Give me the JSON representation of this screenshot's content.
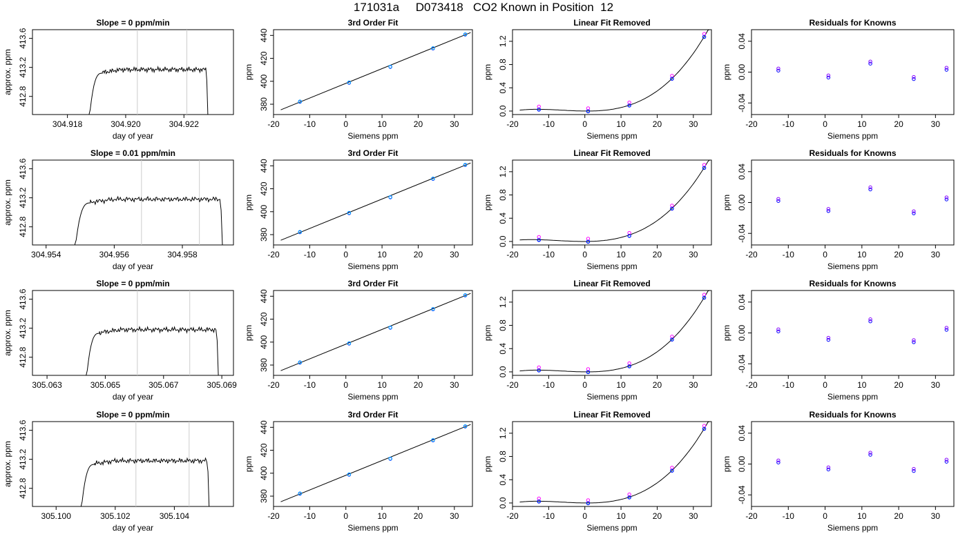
{
  "title": "171031a     D073418   CO2 Known in Position  12",
  "panel_titles": {
    "fit": "3rd Order Fit",
    "linear_removed": "Linear Fit Removed",
    "residuals": "Residuals for Knowns"
  },
  "axis_labels": {
    "day_of_year": "day of year",
    "approx_ppm": "approx. ppm",
    "siemens_ppm": "Siemens ppm",
    "ppm": "ppm"
  },
  "colors": {
    "line": "#000000",
    "marker_a": "#0000ff",
    "marker_b": "#ff00ff",
    "marker_c": "#00aaff",
    "marker_d": "#8800ff",
    "vline": "#cccccc"
  },
  "chart_data": [
    {
      "row": 0,
      "slope_label": "Slope =  0  ppm/min",
      "timeseries": {
        "type": "line",
        "xlim": [
          304.9168,
          304.9237
        ],
        "ylim": [
          412.55,
          413.72
        ],
        "xticks": [
          304.918,
          304.92,
          304.922
        ],
        "xtick_labels": [
          "304.918",
          "304.920",
          "304.922"
        ],
        "yticks": [
          412.8,
          413.2,
          413.6
        ],
        "ytick_labels": [
          "412.8",
          "413.2",
          "413.6"
        ],
        "vlines": [
          304.9204,
          304.9221
        ],
        "rise_start": 304.9187,
        "plateau_start": 304.9192,
        "drop": 304.92275,
        "plateau": 413.17
      },
      "fit": {
        "type": "scatter",
        "xlim": [
          -20,
          35
        ],
        "ylim": [
          371,
          445
        ],
        "x": [
          -12.7,
          0.9,
          12.3,
          24.1,
          33.0
        ],
        "y": [
          382.1,
          398.7,
          412.5,
          428.6,
          440.7
        ],
        "line": [
          [
            -18,
            375.1
          ],
          [
            34.5,
            442.5
          ]
        ],
        "xticks": [
          -20,
          -10,
          0,
          10,
          20,
          30
        ],
        "yticks": [
          380,
          400,
          420,
          440
        ]
      },
      "linear_removed": {
        "type": "scatter",
        "xlim": [
          -20,
          35
        ],
        "ylim": [
          -0.06,
          1.4
        ],
        "x": [
          -12.7,
          0.9,
          12.3,
          24.1,
          33.0
        ],
        "y": [
          0.03,
          0.0,
          0.1,
          0.56,
          1.28
        ],
        "xticks": [
          -20,
          -10,
          0,
          10,
          20,
          30
        ],
        "yticks": [
          0.0,
          0.4,
          0.8,
          1.2
        ],
        "ytick_labels": [
          "0.0",
          "0.4",
          "0.8",
          "1.2"
        ]
      },
      "residuals": {
        "type": "scatter",
        "xlim": [
          -20,
          35
        ],
        "ylim": [
          -0.055,
          0.055
        ],
        "x": [
          -12.7,
          0.9,
          12.3,
          24.1,
          33.0
        ],
        "y": [
          0.002,
          -0.007,
          0.011,
          -0.009,
          0.003
        ],
        "xticks": [
          -20,
          -10,
          0,
          10,
          20,
          30
        ],
        "yticks": [
          -0.04,
          0.0,
          0.04
        ],
        "ytick_labels": [
          "-0.04",
          "0.00",
          "0.04"
        ]
      }
    },
    {
      "row": 1,
      "slope_label": "Slope =  0.01  ppm/min",
      "timeseries": {
        "type": "line",
        "xlim": [
          304.9536,
          304.9595
        ],
        "ylim": [
          412.55,
          413.72
        ],
        "xticks": [
          304.954,
          304.956,
          304.958
        ],
        "xtick_labels": [
          "304.954",
          "304.956",
          "304.958"
        ],
        "vlines": [
          304.9568,
          304.9585
        ],
        "rise_start": 304.9548,
        "plateau_start": 304.9553,
        "drop": 304.9591,
        "plateau": 413.18,
        "yticks": [
          412.8,
          413.2,
          413.6
        ],
        "ytick_labels": [
          "412.8",
          "413.2",
          "413.6"
        ]
      },
      "fit": {
        "type": "scatter",
        "xlim": [
          -20,
          35
        ],
        "ylim": [
          371,
          445
        ],
        "x": [
          -12.7,
          0.9,
          12.3,
          24.1,
          33.0
        ],
        "y": [
          382.1,
          398.7,
          412.5,
          428.6,
          440.7
        ],
        "line": [
          [
            -18,
            375.1
          ],
          [
            34.5,
            442.5
          ]
        ],
        "xticks": [
          -20,
          -10,
          0,
          10,
          20,
          30
        ],
        "yticks": [
          380,
          400,
          420,
          440
        ]
      },
      "linear_removed": {
        "type": "scatter",
        "xlim": [
          -20,
          35
        ],
        "ylim": [
          -0.06,
          1.4
        ],
        "x": [
          -12.7,
          0.9,
          12.3,
          24.1,
          33.0
        ],
        "y": [
          0.03,
          0.0,
          0.1,
          0.57,
          1.27
        ],
        "xticks": [
          -20,
          -10,
          0,
          10,
          20,
          30
        ],
        "yticks": [
          0.0,
          0.4,
          0.8,
          1.2
        ],
        "ytick_labels": [
          "0.0",
          "0.4",
          "0.8",
          "1.2"
        ]
      },
      "residuals": {
        "type": "scatter",
        "xlim": [
          -20,
          35
        ],
        "ylim": [
          -0.055,
          0.055
        ],
        "x": [
          -12.7,
          0.9,
          12.3,
          24.1,
          33.0
        ],
        "y": [
          0.002,
          -0.011,
          0.017,
          -0.014,
          0.004
        ],
        "xticks": [
          -20,
          -10,
          0,
          10,
          20,
          30
        ],
        "yticks": [
          -0.04,
          0.0,
          0.04
        ],
        "ytick_labels": [
          "-0.04",
          "0.00",
          "0.04"
        ]
      }
    },
    {
      "row": 2,
      "slope_label": "Slope =  0  ppm/min",
      "timeseries": {
        "type": "line",
        "xlim": [
          305.0625,
          305.0694
        ],
        "ylim": [
          412.55,
          413.72
        ],
        "xticks": [
          305.063,
          305.065,
          305.067,
          305.069
        ],
        "xtick_labels": [
          "305.063",
          "305.065",
          "305.067",
          "305.069"
        ],
        "vlines": [
          305.0661,
          305.0679
        ],
        "rise_start": 305.0643,
        "plateau_start": 305.0648,
        "drop": 305.0688,
        "plateau": 413.18,
        "yticks": [
          412.8,
          413.2,
          413.6
        ],
        "ytick_labels": [
          "412.8",
          "413.2",
          "413.6"
        ]
      },
      "fit": {
        "type": "scatter",
        "xlim": [
          -20,
          35
        ],
        "ylim": [
          371,
          445
        ],
        "x": [
          -12.7,
          0.9,
          12.3,
          24.1,
          33.0
        ],
        "y": [
          382.1,
          398.7,
          412.5,
          428.6,
          440.7
        ],
        "line": [
          [
            -18,
            375.1
          ],
          [
            34.5,
            442.5
          ]
        ],
        "xticks": [
          -20,
          -10,
          0,
          10,
          20,
          30
        ],
        "yticks": [
          380,
          400,
          420,
          440
        ]
      },
      "linear_removed": {
        "type": "scatter",
        "xlim": [
          -20,
          35
        ],
        "ylim": [
          -0.06,
          1.4
        ],
        "x": [
          -12.7,
          0.9,
          12.3,
          24.1,
          33.0
        ],
        "y": [
          0.03,
          0.0,
          0.1,
          0.56,
          1.28
        ],
        "xticks": [
          -20,
          -10,
          0,
          10,
          20,
          30
        ],
        "yticks": [
          0.0,
          0.4,
          0.8,
          1.2
        ],
        "ytick_labels": [
          "0.0",
          "0.4",
          "0.8",
          "1.2"
        ]
      },
      "residuals": {
        "type": "scatter",
        "xlim": [
          -20,
          35
        ],
        "ylim": [
          -0.055,
          0.055
        ],
        "x": [
          -12.7,
          0.9,
          12.3,
          24.1,
          33.0
        ],
        "y": [
          0.002,
          -0.009,
          0.015,
          -0.012,
          0.004
        ],
        "xticks": [
          -20,
          -10,
          0,
          10,
          20,
          30
        ],
        "yticks": [
          -0.04,
          0.0,
          0.04
        ],
        "ytick_labels": [
          "-0.04",
          "0.00",
          "0.04"
        ]
      }
    },
    {
      "row": 3,
      "slope_label": "Slope =  0  ppm/min",
      "timeseries": {
        "type": "line",
        "xlim": [
          305.0992,
          305.106
        ],
        "ylim": [
          412.55,
          413.72
        ],
        "xticks": [
          305.1,
          305.102,
          305.104
        ],
        "xtick_labels": [
          "305.100",
          "305.102",
          "305.104"
        ],
        "vlines": [
          305.1027,
          305.1045
        ],
        "rise_start": 305.1008,
        "plateau_start": 305.1013,
        "drop": 305.1051,
        "plateau": 413.18,
        "yticks": [
          412.8,
          413.2,
          413.6
        ],
        "ytick_labels": [
          "412.8",
          "413.2",
          "413.6"
        ]
      },
      "fit": {
        "type": "scatter",
        "xlim": [
          -20,
          35
        ],
        "ylim": [
          371,
          445
        ],
        "x": [
          -12.7,
          0.9,
          12.3,
          24.1,
          33.0
        ],
        "y": [
          382.1,
          398.7,
          412.5,
          428.6,
          440.7
        ],
        "line": [
          [
            -18,
            375.1
          ],
          [
            34.5,
            442.5
          ]
        ],
        "xticks": [
          -20,
          -10,
          0,
          10,
          20,
          30
        ],
        "yticks": [
          380,
          400,
          420,
          440
        ]
      },
      "linear_removed": {
        "type": "scatter",
        "xlim": [
          -20,
          35
        ],
        "ylim": [
          -0.06,
          1.4
        ],
        "x": [
          -12.7,
          0.9,
          12.3,
          24.1,
          33.0
        ],
        "y": [
          0.03,
          0.0,
          0.1,
          0.56,
          1.28
        ],
        "xticks": [
          -20,
          -10,
          0,
          10,
          20,
          30
        ],
        "yticks": [
          0.0,
          0.4,
          0.8,
          1.2
        ],
        "ytick_labels": [
          "0.0",
          "0.4",
          "0.8",
          "1.2"
        ]
      },
      "residuals": {
        "type": "scatter",
        "xlim": [
          -20,
          35
        ],
        "ylim": [
          -0.055,
          0.055
        ],
        "x": [
          -12.7,
          0.9,
          12.3,
          24.1,
          33.0
        ],
        "y": [
          0.002,
          -0.007,
          0.012,
          -0.009,
          0.003
        ],
        "xticks": [
          -20,
          -10,
          0,
          10,
          20,
          30
        ],
        "yticks": [
          -0.04,
          0.0,
          0.04
        ],
        "ytick_labels": [
          "-0.04",
          "0.00",
          "0.04"
        ]
      }
    }
  ]
}
